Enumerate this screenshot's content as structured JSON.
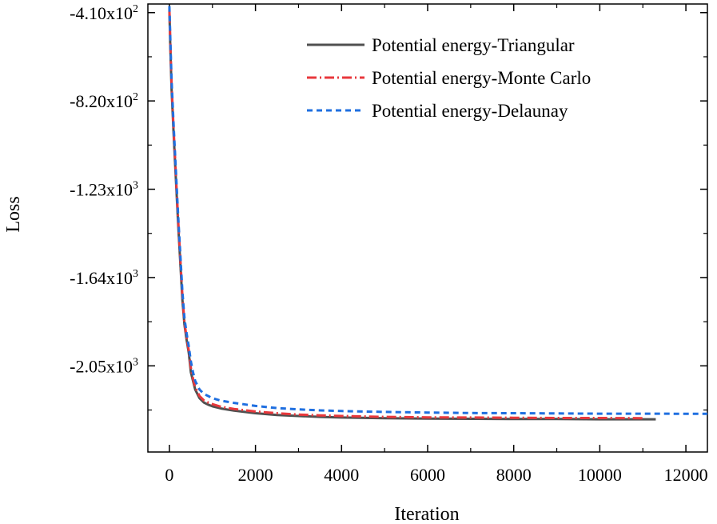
{
  "chart_data": {
    "type": "line",
    "xlabel": "Iteration",
    "ylabel": "Loss",
    "xlim": [
      -500,
      12500
    ],
    "ylim": [
      -2450,
      -370
    ],
    "x_ticks": [
      0,
      2000,
      4000,
      6000,
      8000,
      10000,
      12000
    ],
    "x_tick_labels": [
      "0",
      "2000",
      "4000",
      "6000",
      "8000",
      "10000",
      "12000"
    ],
    "y_ticks": [
      {
        "value": -410,
        "mantissa": "-4.10x10",
        "exponent": "2"
      },
      {
        "value": -820,
        "mantissa": "-8.20x10",
        "exponent": "2"
      },
      {
        "value": -1230,
        "mantissa": "-1.23x10",
        "exponent": "3"
      },
      {
        "value": -1640,
        "mantissa": "-1.64x10",
        "exponent": "3"
      },
      {
        "value": -2050,
        "mantissa": "-2.05x10",
        "exponent": "3"
      }
    ],
    "grid": false,
    "legend_position": "top-right",
    "series": [
      {
        "name": "Potential energy-Triangular",
        "color": "#505050",
        "dash": "solid",
        "x": [
          0,
          20,
          50,
          100,
          150,
          200,
          250,
          300,
          350,
          400,
          450,
          500,
          550,
          600,
          650,
          700,
          800,
          900,
          1000,
          1200,
          1500,
          2000,
          2500,
          3000,
          3500,
          4000,
          5000,
          6000,
          7000,
          8000,
          9000,
          10000,
          11300
        ],
        "y": [
          -400,
          -560,
          -760,
          -980,
          -1180,
          -1380,
          -1560,
          -1740,
          -1860,
          -1930,
          -1990,
          -2080,
          -2120,
          -2160,
          -2180,
          -2200,
          -2220,
          -2230,
          -2238,
          -2248,
          -2258,
          -2270,
          -2278,
          -2283,
          -2287,
          -2290,
          -2293,
          -2295,
          -2296,
          -2297,
          -2297,
          -2298,
          -2298
        ]
      },
      {
        "name": "Potential energy-Monte Carlo",
        "color": "#e8383c",
        "dash": "dashdot",
        "x": [
          0,
          20,
          50,
          100,
          150,
          200,
          250,
          300,
          350,
          400,
          450,
          500,
          550,
          600,
          650,
          700,
          800,
          900,
          1000,
          1200,
          1500,
          2000,
          2500,
          3000,
          3500,
          4000,
          5000,
          6000,
          7000,
          8000,
          9000,
          10000,
          11000
        ],
        "y": [
          -390,
          -540,
          -740,
          -960,
          -1160,
          -1360,
          -1540,
          -1720,
          -1850,
          -1920,
          -1980,
          -2060,
          -2110,
          -2150,
          -2170,
          -2190,
          -2210,
          -2220,
          -2228,
          -2240,
          -2250,
          -2262,
          -2270,
          -2276,
          -2280,
          -2283,
          -2287,
          -2289,
          -2290,
          -2291,
          -2292,
          -2292,
          -2293
        ]
      },
      {
        "name": "Potential energy-Delaunay",
        "color": "#1f6fe0",
        "dash": "dashed",
        "x": [
          0,
          20,
          50,
          100,
          150,
          200,
          250,
          300,
          350,
          400,
          450,
          500,
          550,
          600,
          650,
          700,
          800,
          900,
          1000,
          1200,
          1500,
          2000,
          2500,
          3000,
          3500,
          4000,
          5000,
          6000,
          7000,
          8000,
          9000,
          10000,
          11000,
          12500
        ],
        "y": [
          -380,
          -520,
          -720,
          -940,
          -1140,
          -1340,
          -1520,
          -1700,
          -1830,
          -1900,
          -1960,
          -2030,
          -2080,
          -2120,
          -2140,
          -2160,
          -2180,
          -2190,
          -2200,
          -2212,
          -2222,
          -2236,
          -2246,
          -2252,
          -2257,
          -2260,
          -2264,
          -2267,
          -2269,
          -2270,
          -2271,
          -2272,
          -2272,
          -2273
        ]
      }
    ]
  }
}
